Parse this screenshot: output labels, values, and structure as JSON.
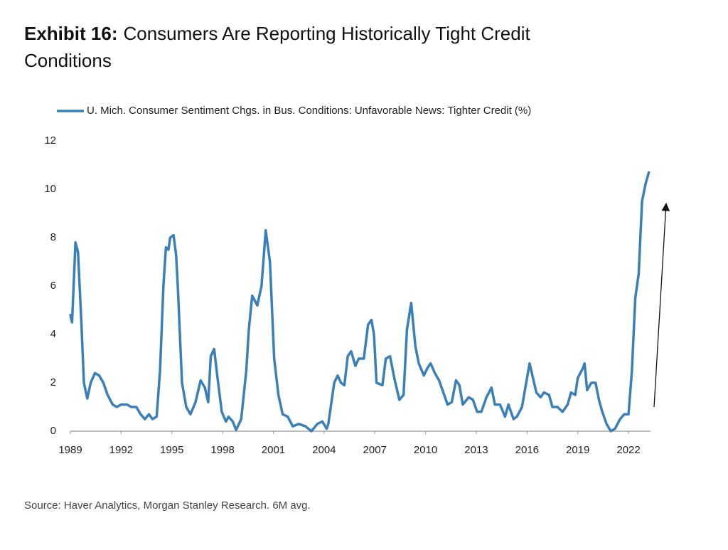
{
  "chart_data": {
    "type": "line",
    "title_prefix": "Exhibit 16:",
    "title": "Consumers Are Reporting Historically Tight Credit Conditions",
    "source": "Source: Haver Analytics, Morgan Stanley Research. 6M avg.",
    "xlim": [
      1989,
      2023.3
    ],
    "xticks": [
      1989,
      1992,
      1995,
      1998,
      2001,
      2004,
      2007,
      2010,
      2013,
      2016,
      2019,
      2022
    ],
    "ylim": [
      0,
      12
    ],
    "yticks": [
      0,
      2,
      4,
      6,
      8,
      10,
      12
    ],
    "grid": false,
    "legend": "top",
    "series": [
      {
        "name": "U. Mich. Consumer Sentiment Chgs. in Bus. Conditions: Unfavorable News: Tighter Credit (%)",
        "color": "#3a7fb8",
        "x": [
          1989.0,
          1989.1,
          1989.3,
          1989.45,
          1989.65,
          1989.8,
          1990.0,
          1990.2,
          1990.45,
          1990.7,
          1990.95,
          1991.2,
          1991.5,
          1991.75,
          1992.0,
          1992.35,
          1992.6,
          1992.9,
          1993.15,
          1993.4,
          1993.65,
          1993.85,
          1994.1,
          1994.3,
          1994.5,
          1994.65,
          1994.8,
          1994.9,
          1995.1,
          1995.25,
          1995.35,
          1995.6,
          1995.85,
          1996.1,
          1996.4,
          1996.7,
          1996.95,
          1997.15,
          1997.3,
          1997.5,
          1997.7,
          1997.95,
          1998.2,
          1998.35,
          1998.6,
          1998.8,
          1999.1,
          1999.4,
          1999.55,
          1999.75,
          2000.05,
          2000.3,
          2000.55,
          2000.8,
          2001.05,
          2001.3,
          2001.55,
          2001.85,
          2002.15,
          2002.5,
          2002.9,
          2003.25,
          2003.6,
          2003.9,
          2004.15,
          2004.25,
          2004.6,
          2004.8,
          2005.0,
          2005.2,
          2005.4,
          2005.6,
          2005.85,
          2006.05,
          2006.35,
          2006.6,
          2006.8,
          2006.95,
          2007.1,
          2007.45,
          2007.65,
          2007.9,
          2008.15,
          2008.45,
          2008.7,
          2008.9,
          2009.15,
          2009.4,
          2009.6,
          2009.9,
          2010.1,
          2010.3,
          2010.55,
          2010.8,
          2011.05,
          2011.3,
          2011.55,
          2011.8,
          2012.0,
          2012.2,
          2012.55,
          2012.8,
          2013.05,
          2013.3,
          2013.6,
          2013.9,
          2014.1,
          2014.4,
          2014.7,
          2014.9,
          2015.2,
          2015.4,
          2015.7,
          2015.95,
          2016.15,
          2016.35,
          2016.55,
          2016.8,
          2017.0,
          2017.3,
          2017.5,
          2017.8,
          2018.1,
          2018.4,
          2018.6,
          2018.85,
          2019.0,
          2019.3,
          2019.4,
          2019.55,
          2019.8,
          2020.05,
          2020.25,
          2020.45,
          2020.7,
          2020.95,
          2021.2,
          2021.5,
          2021.75,
          2022.0,
          2022.2,
          2022.4,
          2022.6,
          2022.8,
          2023.0,
          2023.2
        ],
        "values": [
          4.8,
          4.5,
          7.8,
          7.4,
          4.5,
          2.0,
          1.35,
          2.0,
          2.4,
          2.3,
          2.0,
          1.5,
          1.1,
          1.0,
          1.1,
          1.1,
          1.0,
          1.0,
          0.7,
          0.5,
          0.7,
          0.5,
          0.6,
          2.5,
          6.0,
          7.6,
          7.5,
          8.0,
          8.1,
          7.3,
          6.0,
          2.0,
          1.0,
          0.7,
          1.2,
          2.1,
          1.8,
          1.2,
          3.1,
          3.4,
          2.2,
          0.8,
          0.4,
          0.6,
          0.4,
          0.05,
          0.5,
          2.5,
          4.2,
          5.6,
          5.2,
          6.0,
          8.3,
          7.0,
          3.0,
          1.5,
          0.7,
          0.6,
          0.2,
          0.3,
          0.2,
          0.0,
          0.3,
          0.4,
          0.1,
          0.3,
          2.0,
          2.3,
          2.0,
          1.9,
          3.1,
          3.3,
          2.7,
          3.0,
          3.0,
          4.4,
          4.6,
          4.0,
          2.0,
          1.9,
          3.0,
          3.1,
          2.2,
          1.3,
          1.5,
          4.2,
          5.3,
          3.5,
          2.8,
          2.3,
          2.6,
          2.8,
          2.4,
          2.1,
          1.6,
          1.1,
          1.2,
          2.1,
          1.9,
          1.1,
          1.4,
          1.3,
          0.8,
          0.8,
          1.4,
          1.8,
          1.1,
          1.1,
          0.6,
          1.1,
          0.5,
          0.6,
          1.0,
          2.0,
          2.8,
          2.2,
          1.6,
          1.4,
          1.6,
          1.5,
          1.0,
          1.0,
          0.8,
          1.1,
          1.6,
          1.5,
          2.2,
          2.6,
          2.8,
          1.7,
          2.0,
          2.0,
          1.3,
          0.8,
          0.3,
          0.0,
          0.1,
          0.5,
          0.7,
          0.7,
          2.5,
          5.5,
          6.5,
          9.5,
          10.2,
          10.7
        ]
      }
    ]
  }
}
